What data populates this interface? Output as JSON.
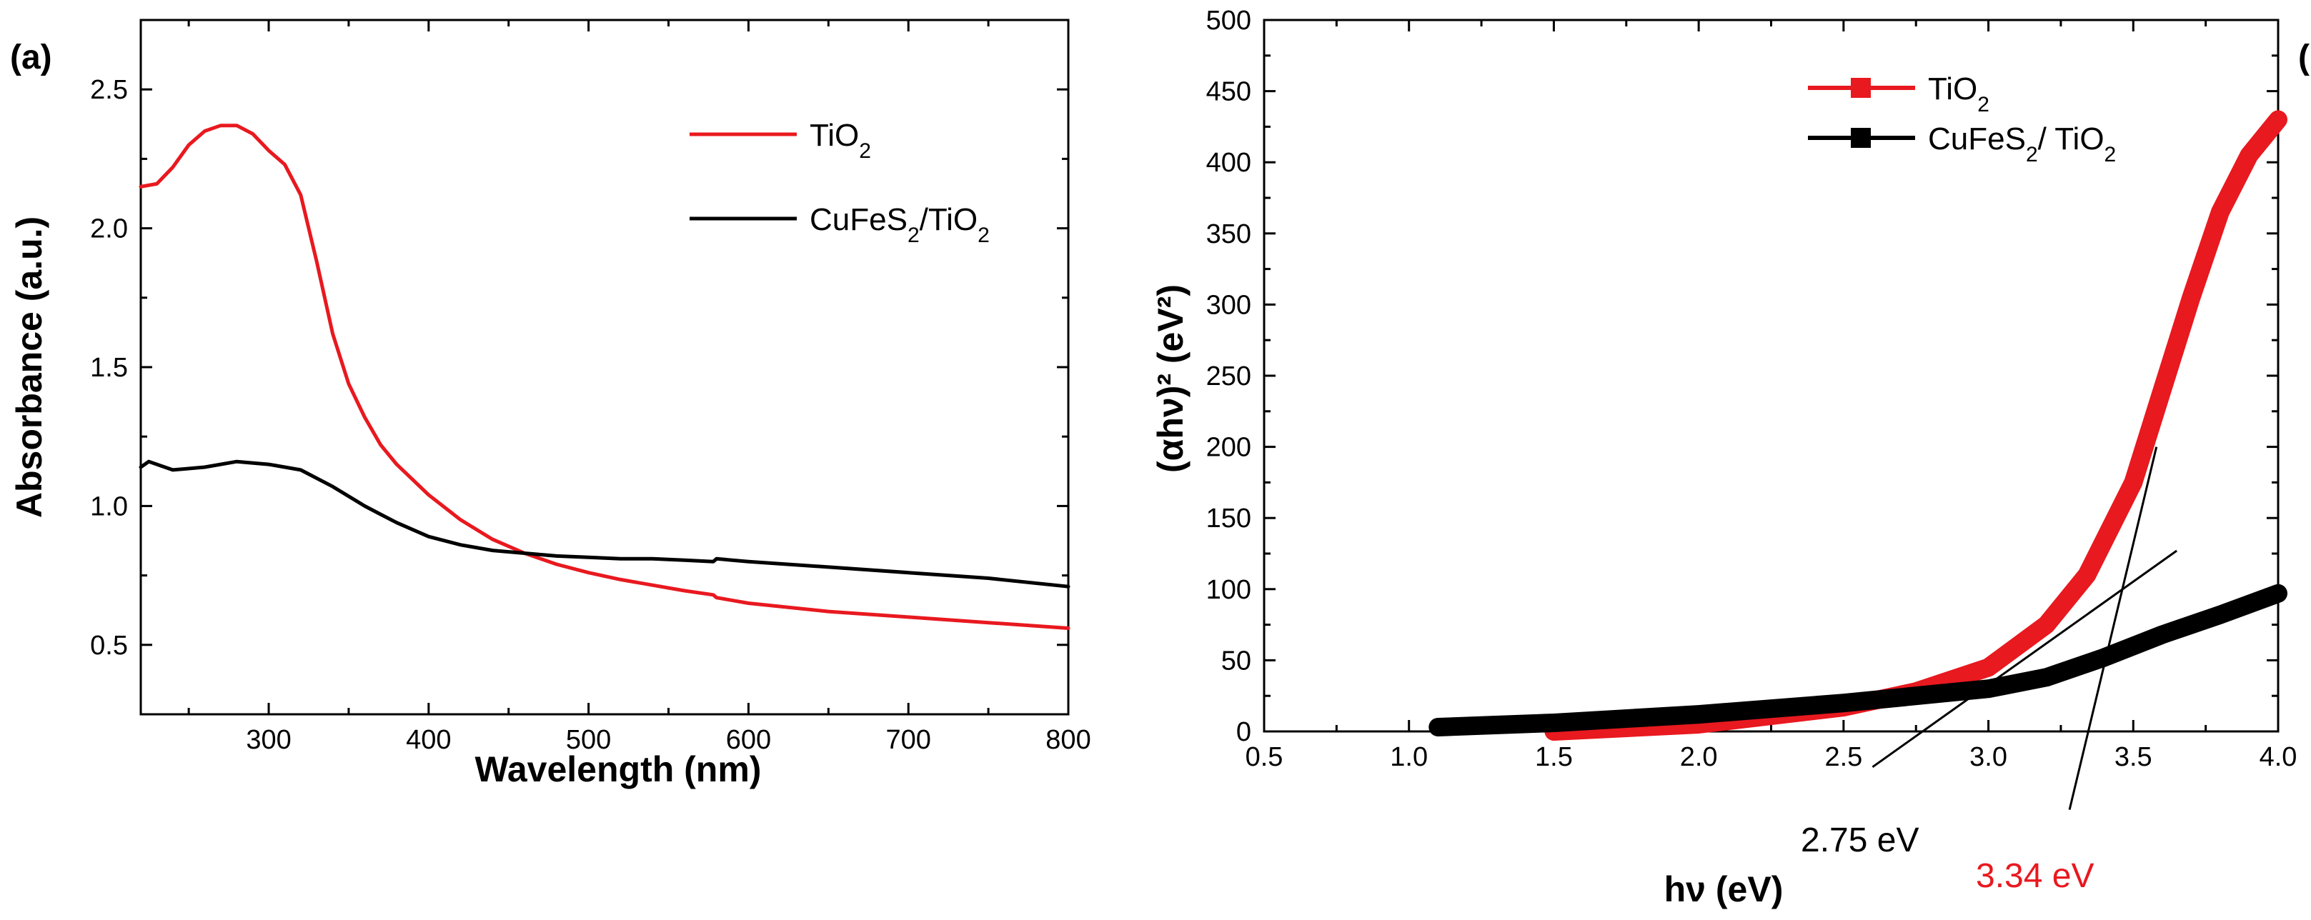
{
  "chart_data": [
    {
      "panel": "(a)",
      "type": "line",
      "xlabel": "Wavelength (nm)",
      "ylabel": "Absorbance (a.u.)",
      "xlim": [
        220,
        800
      ],
      "ylim": [
        0.25,
        2.75
      ],
      "xticks": [
        300,
        400,
        500,
        600,
        700,
        800
      ],
      "yticks": [
        0.5,
        1.0,
        1.5,
        2.0,
        2.5
      ],
      "xtick_labels": [
        "300",
        "400",
        "500",
        "600",
        "700",
        "800"
      ],
      "ytick_labels": [
        "0.5",
        "1.0",
        "1.5",
        "2.0",
        "2.5"
      ],
      "legend": [
        {
          "base": "TiO",
          "sub": "2",
          "suffix": "",
          "color": "#e8191f"
        },
        {
          "base": "CuFeS",
          "sub": "2",
          "suffix": "/TiO",
          "sub2": "2",
          "color": "#000000"
        }
      ],
      "series": [
        {
          "name": "TiO2",
          "color": "#e8191f",
          "x": [
            220,
            230,
            240,
            250,
            260,
            270,
            280,
            290,
            300,
            310,
            320,
            330,
            340,
            350,
            360,
            370,
            380,
            400,
            420,
            440,
            460,
            480,
            500,
            520,
            540,
            560,
            578,
            580,
            600,
            650,
            700,
            750,
            800
          ],
          "y": [
            2.15,
            2.16,
            2.22,
            2.3,
            2.35,
            2.37,
            2.37,
            2.34,
            2.28,
            2.23,
            2.12,
            1.88,
            1.62,
            1.44,
            1.32,
            1.22,
            1.15,
            1.04,
            0.95,
            0.88,
            0.83,
            0.79,
            0.76,
            0.735,
            0.715,
            0.695,
            0.68,
            0.67,
            0.65,
            0.62,
            0.6,
            0.58,
            0.56
          ]
        },
        {
          "name": "CuFeS2/TiO2",
          "color": "#000000",
          "x": [
            220,
            225,
            240,
            260,
            280,
            300,
            320,
            340,
            360,
            370,
            380,
            400,
            420,
            440,
            460,
            480,
            500,
            520,
            540,
            560,
            578,
            580,
            600,
            650,
            700,
            750,
            800
          ],
          "y": [
            1.14,
            1.16,
            1.13,
            1.14,
            1.16,
            1.15,
            1.13,
            1.07,
            1.0,
            0.97,
            0.94,
            0.89,
            0.86,
            0.84,
            0.83,
            0.82,
            0.815,
            0.81,
            0.81,
            0.805,
            0.8,
            0.81,
            0.8,
            0.78,
            0.76,
            0.74,
            0.71
          ]
        }
      ]
    },
    {
      "panel": "(b)",
      "type": "scatter",
      "xlabel": "hν (eV)",
      "ylabel": "(αhν)² (eV²)",
      "xlim": [
        0.5,
        4.0
      ],
      "ylim": [
        0,
        500
      ],
      "xticks": [
        0.5,
        1.0,
        1.5,
        2.0,
        2.5,
        3.0,
        3.5,
        4.0
      ],
      "yticks": [
        0,
        50,
        100,
        150,
        200,
        250,
        300,
        350,
        400,
        450,
        500
      ],
      "xtick_labels": [
        "0.5",
        "1.0",
        "1.5",
        "2.0",
        "2.5",
        "3.0",
        "3.5",
        "4.0"
      ],
      "ytick_labels": [
        "0",
        "50",
        "100",
        "150",
        "200",
        "250",
        "300",
        "350",
        "400",
        "450",
        "500"
      ],
      "legend": [
        {
          "base": "TiO",
          "sub": "2",
          "suffix": "",
          "color": "#e8191f"
        },
        {
          "base": "CuFeS",
          "sub": "2",
          "suffix": "/ TiO",
          "sub2": "2",
          "color": "#000000"
        }
      ],
      "series": [
        {
          "name": "TiO2",
          "color": "#e8191f",
          "x": [
            1.5,
            2.0,
            2.5,
            2.75,
            3.0,
            3.2,
            3.34,
            3.5,
            3.6,
            3.7,
            3.8,
            3.9,
            4.0
          ],
          "y": [
            0,
            5,
            17,
            28,
            45,
            75,
            110,
            175,
            240,
            305,
            365,
            405,
            430
          ]
        },
        {
          "name": "CuFeS2/TiO2",
          "color": "#000000",
          "x": [
            1.1,
            1.5,
            2.0,
            2.5,
            3.0,
            3.2,
            3.4,
            3.6,
            3.8,
            4.0
          ],
          "y": [
            3,
            6,
            12,
            20,
            30,
            38,
            52,
            68,
            82,
            97
          ]
        }
      ],
      "tangent_lines": [
        {
          "label": "2.75 eV",
          "color": "#000000",
          "x": [
            2.6,
            3.65
          ],
          "y": [
            -25,
            127
          ]
        },
        {
          "label": "3.34 eV",
          "color": "#e8191f",
          "x": [
            3.28,
            3.58
          ],
          "y": [
            -55,
            200
          ]
        }
      ]
    }
  ]
}
